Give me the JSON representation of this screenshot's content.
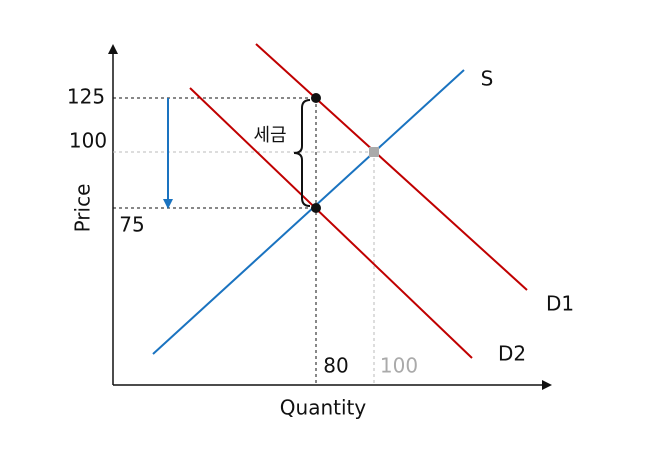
{
  "axes": {
    "x_label": "Quantity",
    "y_label": "Price"
  },
  "price_labels": [
    "125",
    "100",
    "75"
  ],
  "quantity_labels": [
    "80",
    "100"
  ],
  "curves": {
    "supply": "S",
    "demand_before": "D1",
    "demand_after": "D2"
  },
  "tax_label": "세금"
}
